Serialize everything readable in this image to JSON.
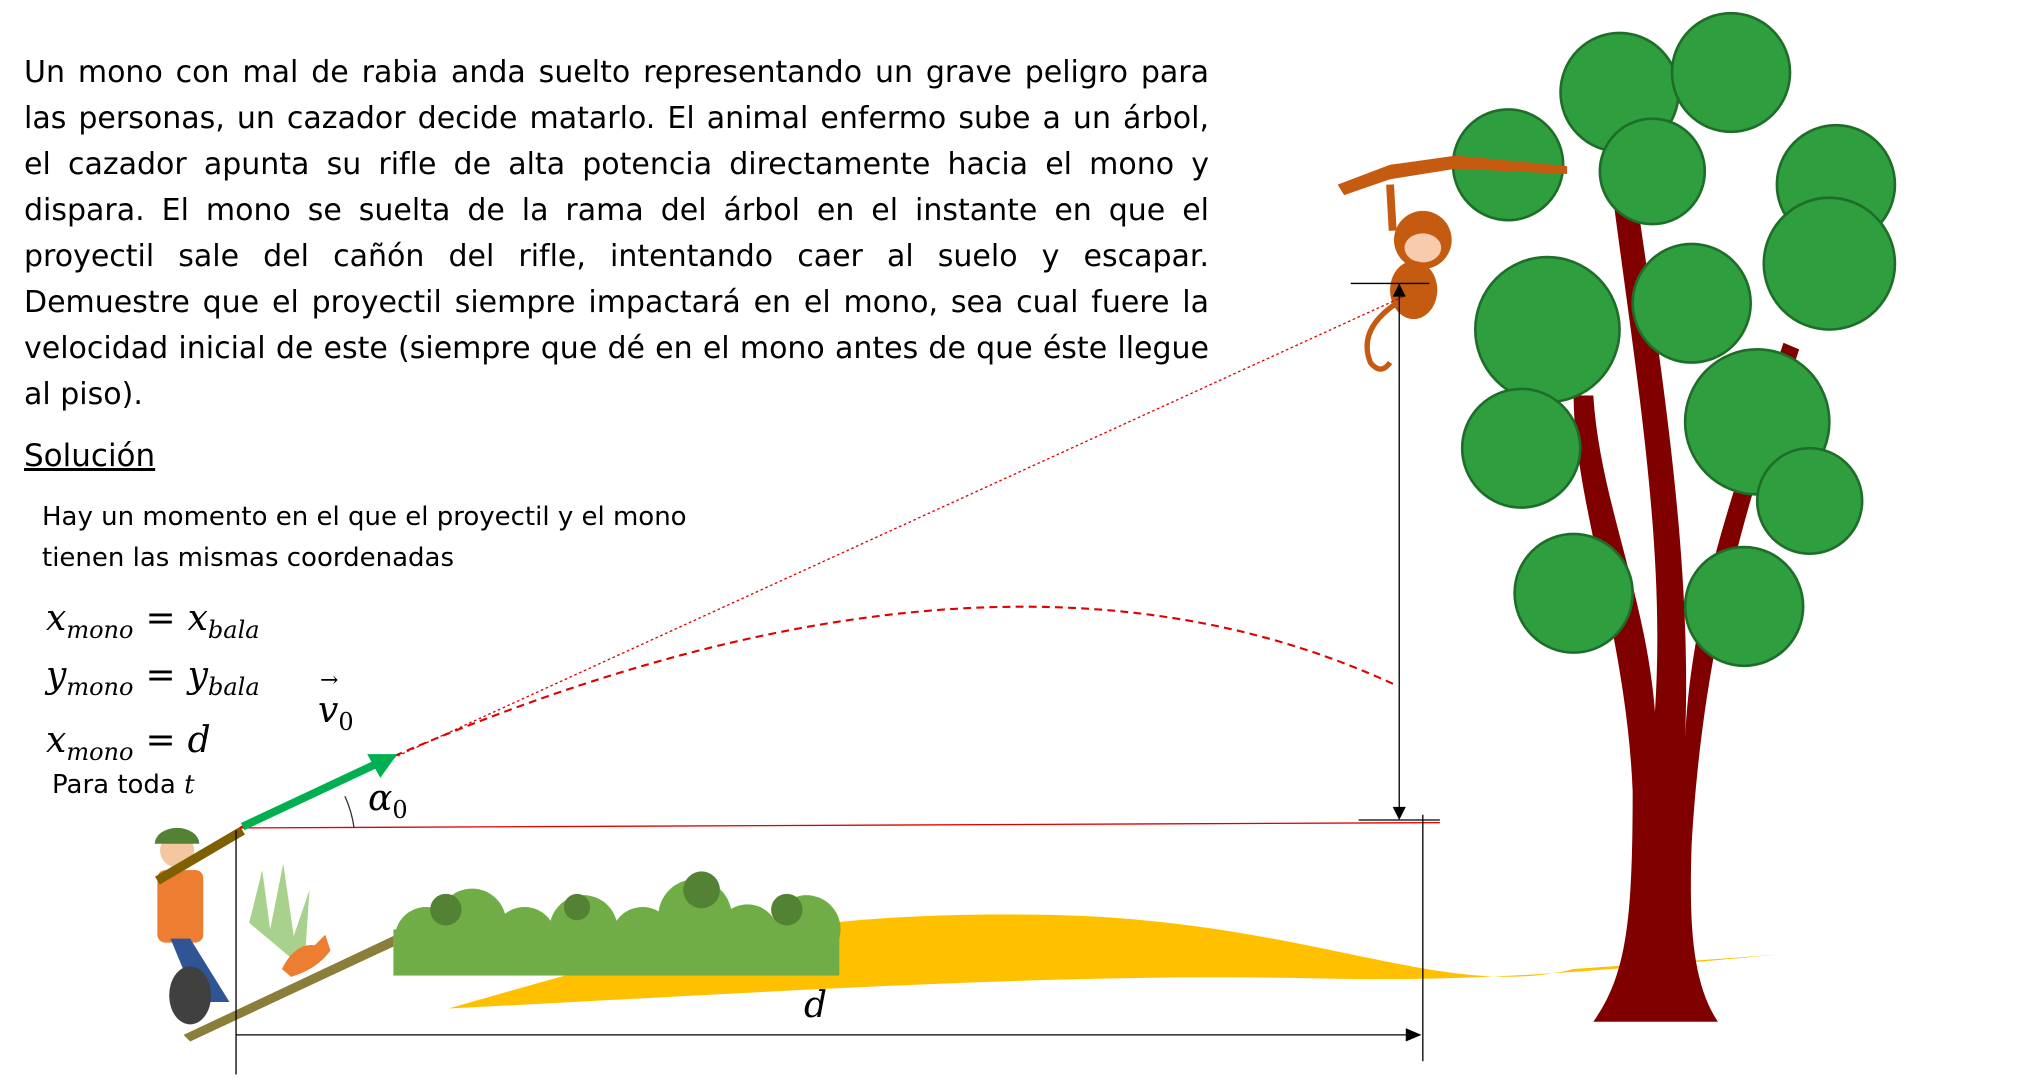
{
  "problem": {
    "statement": "Un mono con mal de rabia anda suelto representando un grave peligro para las personas, un cazador decide matarlo. El animal enfermo sube a un árbol, el cazador apunta su rifle de alta potencia directamente hacia el mono y dispara. El mono se suelta de la rama del árbol en el instante en que el proyectil sale del cañón del rifle, intentando caer al suelo y escapar. Demuestre que el proyectil siempre impactará en el mono, sea cual fuere la velocidad inicial de este (siempre que dé en el mono antes de que éste llegue al piso)."
  },
  "solution": {
    "heading": "Solución",
    "explanation_lines": [
      "Hay un momento en el que el proyectil y el mono",
      "tienen las mismas coordenadas"
    ],
    "equations": [
      {
        "left": "x",
        "left_sub": "mono",
        "op": "=",
        "right": "x",
        "right_sub": "bala"
      },
      {
        "left": "y",
        "left_sub": "mono",
        "op": "=",
        "right": "y",
        "right_sub": "bala"
      },
      {
        "left": "x",
        "left_sub": "mono",
        "op": "=",
        "right": "d",
        "right_sub": null
      }
    ],
    "condition": {
      "text": "Para toda",
      "var": "t"
    }
  },
  "diagram": {
    "velocity_label": {
      "symbol": "v",
      "sub": "0"
    },
    "angle_label": {
      "symbol": "α",
      "sub": "0"
    },
    "distance_label": "d"
  }
}
